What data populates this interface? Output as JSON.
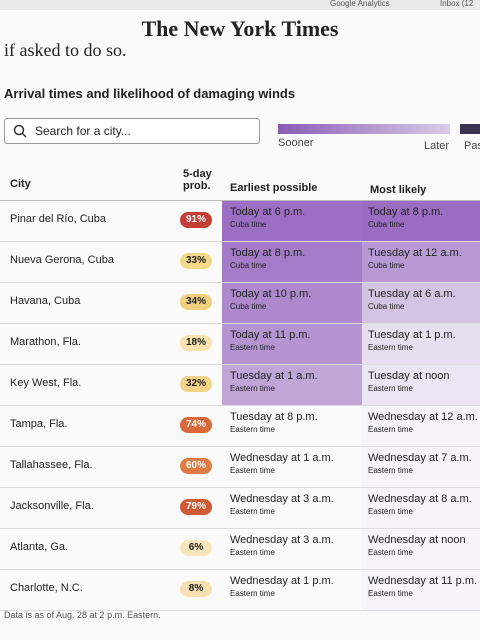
{
  "browser": {
    "tabs": [
      "Google Analytics",
      "Inbox (12"
    ]
  },
  "header": {
    "brand": "The New York Times"
  },
  "intro_text": "if asked to do so.",
  "title": "Arrival times and likelihood of damaging winds",
  "search": {
    "placeholder": "Search for a city..."
  },
  "legend": {
    "sooner": "Sooner",
    "later": "Later",
    "past": "Pas"
  },
  "table": {
    "columns": [
      "City",
      "5-day prob.",
      "Earliest possible",
      "Most likely"
    ],
    "rows": [
      [
        "Pinar del Río, Cuba",
        "91%",
        "Today at 6 p.m.",
        "Cuba time",
        "Today at 8 p.m.",
        "Cuba time"
      ],
      [
        "Nueva Gerona, Cuba",
        "33%",
        "Today at 8 p.m.",
        "Cuba time",
        "Tuesday at 12 a.m.",
        "Cuba time"
      ],
      [
        "Havana, Cuba",
        "34%",
        "Today at 10 p.m.",
        "Cuba time",
        "Tuesday at 6 a.m.",
        "Cuba time"
      ],
      [
        "Marathon, Fla.",
        "18%",
        "Today at 11 p.m.",
        "Eastern time",
        "Tuesday at 1 p.m.",
        "Eastern time"
      ],
      [
        "Key West, Fla.",
        "32%",
        "Tuesday at 1 a.m.",
        "Eastern time",
        "Tuesday at noon",
        "Eastern time"
      ],
      [
        "Tampa, Fla.",
        "74%",
        "Tuesday at 8 p.m.",
        "Eastern time",
        "Wednesday at 12 a.m.",
        "Eastern time"
      ],
      [
        "Tallahassee, Fla.",
        "60%",
        "Wednesday at 1 a.m.",
        "Eastern time",
        "Wednesday at 7 a.m.",
        "Eastern time"
      ],
      [
        "Jacksonville, Fla.",
        "79%",
        "Wednesday at 3 a.m.",
        "Eastern time",
        "Wednesday at 8 a.m.",
        "Eastern time"
      ],
      [
        "Atlanta, Ga.",
        "6%",
        "Wednesday at 3 a.m.",
        "Eastern time",
        "Wednesday at noon",
        "Eastern time"
      ],
      [
        "Charlotte, N.C.",
        "8%",
        "Wednesday at 1 p.m.",
        "Eastern time",
        "Wednesday at 11 p.m.",
        "Eastern time"
      ]
    ]
  },
  "footnote": "Data is as of Aug. 28 at 2 p.m. Eastern."
}
